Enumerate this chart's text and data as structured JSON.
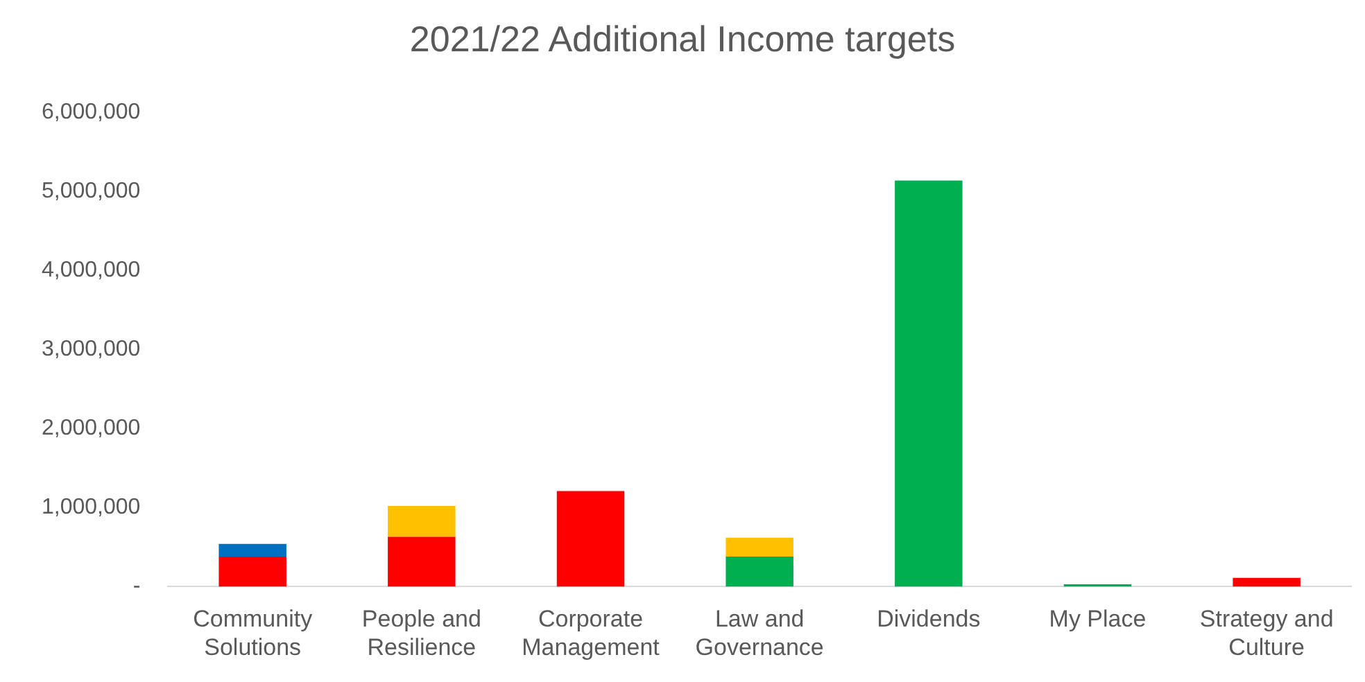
{
  "chart_data": {
    "type": "bar",
    "title": "2021/22 Additional Income targets",
    "stacked": true,
    "categories": [
      "Community Solutions",
      "People and Resilience",
      "Corporate Management",
      "Law and Governance",
      "Dividends",
      "My Place",
      "Strategy and Culture"
    ],
    "series": [
      {
        "color": "#ff0000",
        "values": [
          380000,
          630000,
          1210000,
          null,
          null,
          null,
          110000
        ]
      },
      {
        "color": "#00b050",
        "values": [
          null,
          null,
          null,
          380000,
          5140000,
          30000,
          null
        ]
      },
      {
        "color": "#0070c0",
        "values": [
          160000,
          null,
          null,
          null,
          null,
          null,
          null
        ]
      },
      {
        "color": "#ffc000",
        "values": [
          null,
          390000,
          null,
          240000,
          null,
          null,
          null
        ]
      }
    ],
    "ylim": [
      0,
      6000000
    ],
    "yticks": [
      {
        "value": 0,
        "label": "-"
      },
      {
        "value": 1000000,
        "label": "1,000,000"
      },
      {
        "value": 2000000,
        "label": "2,000,000"
      },
      {
        "value": 3000000,
        "label": "3,000,000"
      },
      {
        "value": 4000000,
        "label": "4,000,000"
      },
      {
        "value": 5000000,
        "label": "5,000,000"
      },
      {
        "value": 6000000,
        "label": "6,000,000"
      }
    ],
    "grid": false,
    "legend": false
  }
}
